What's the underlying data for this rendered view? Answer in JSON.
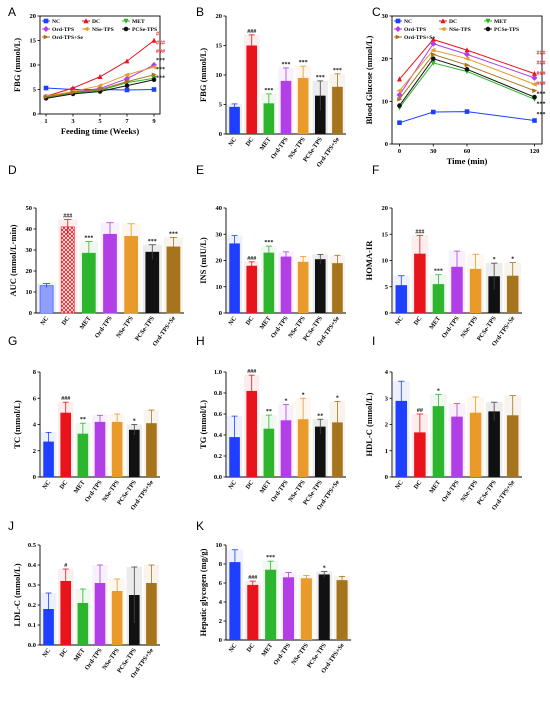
{
  "figure": {
    "groups": [
      "NC",
      "DC",
      "MET",
      "Ord-TPS",
      "NSe-TPS",
      "PCSe-TPS",
      "Ord-TPS+Se"
    ],
    "colors": {
      "NC": "#1f3fff",
      "DC": "#e8141c",
      "MET": "#2db52d",
      "Ord-TPS": "#b23ee8",
      "NSe-TPS": "#e89a2a",
      "PCSe-TPS": "#111111",
      "Ord-TPS+Se": "#a5741c"
    }
  },
  "chart_data": [
    {
      "panel": "A",
      "type": "line",
      "xlabel": "Feeding time (Weeks)",
      "ylabel": "FBG (mmol/L)",
      "x": [
        1,
        3,
        5,
        7,
        9
      ],
      "xticks": [
        "1",
        "3",
        "5",
        "7",
        "9"
      ],
      "yticks": [
        "0",
        "5",
        "10",
        "15",
        "20"
      ],
      "ylim": [
        0,
        20
      ],
      "legend": [
        "NC",
        "DC",
        "MET",
        "Ord-TPS",
        "NSe-TPS",
        "PCSe-TPS",
        "Ord-TPS+Se"
      ],
      "series": [
        {
          "name": "NC",
          "values": [
            5.3,
            5.0,
            5.0,
            4.9,
            5.0
          ]
        },
        {
          "name": "DC",
          "values": [
            3.6,
            5.3,
            7.6,
            10.8,
            15.0
          ]
        },
        {
          "name": "MET",
          "values": [
            3.4,
            4.3,
            4.8,
            6.4,
            7.3
          ]
        },
        {
          "name": "Ord-TPS",
          "values": [
            3.5,
            4.5,
            5.2,
            7.2,
            10.0
          ]
        },
        {
          "name": "NSe-TPS",
          "values": [
            3.6,
            4.6,
            5.8,
            8.0,
            9.6
          ]
        },
        {
          "name": "PCSe-TPS",
          "values": [
            3.2,
            4.1,
            4.6,
            5.8,
            7.0
          ]
        },
        {
          "name": "Ord-TPS+Se",
          "values": [
            3.5,
            4.4,
            5.0,
            6.6,
            8.0
          ]
        }
      ],
      "annotations": [
        "#",
        "###",
        "###",
        "***",
        "***",
        "***"
      ]
    },
    {
      "panel": "B",
      "type": "bar",
      "ylabel": "FBG (mmol/L)",
      "yticks": [
        "0",
        "5",
        "10",
        "15",
        "20"
      ],
      "ylim": [
        0,
        20
      ],
      "categories": [
        "NC",
        "DC",
        "MET",
        "Ord-TPS",
        "NSe-TPS",
        "PCSe-TPS",
        "Ord-TPS+Se"
      ],
      "values": [
        4.6,
        15.0,
        5.2,
        9.0,
        9.5,
        6.5,
        8.0
      ],
      "errors": [
        0.5,
        1.8,
        1.6,
        2.2,
        2.0,
        2.5,
        2.2
      ],
      "annotations": [
        "",
        "###",
        "***",
        "***",
        "***",
        "***",
        "***"
      ]
    },
    {
      "panel": "C",
      "type": "line",
      "xlabel": "Time (min)",
      "ylabel": "Blood Glucose (mmol/L)",
      "x": [
        0,
        30,
        60,
        120
      ],
      "xticks": [
        "0",
        "30",
        "60",
        "120"
      ],
      "yticks": [
        "0",
        "10",
        "20",
        "30"
      ],
      "ylim": [
        0,
        30
      ],
      "legend": [
        "NC",
        "DC",
        "MET",
        "Ord-TPS",
        "NSe-TPS",
        "PCSe-TPS",
        "Ord-TPS+Se"
      ],
      "series": [
        {
          "name": "NC",
          "values": [
            5.0,
            7.5,
            7.6,
            5.5
          ]
        },
        {
          "name": "DC",
          "values": [
            15.2,
            24.5,
            22.0,
            16.5
          ]
        },
        {
          "name": "MET",
          "values": [
            8.5,
            19.0,
            17.0,
            10.5
          ]
        },
        {
          "name": "Ord-TPS",
          "values": [
            11.5,
            23.5,
            21.0,
            15.5
          ]
        },
        {
          "name": "NSe-TPS",
          "values": [
            12.5,
            22.0,
            20.0,
            14.0
          ]
        },
        {
          "name": "PCSe-TPS",
          "values": [
            9.0,
            20.0,
            17.5,
            11.0
          ]
        },
        {
          "name": "Ord-TPS+Se",
          "values": [
            10.5,
            21.0,
            18.5,
            12.5
          ]
        }
      ],
      "annotations": [
        "###",
        "###",
        "###",
        "###",
        "***",
        "***",
        "***"
      ]
    },
    {
      "panel": "D",
      "type": "bar",
      "ylabel": "AUC (mmol/L·min)",
      "yticks": [
        "0",
        "10",
        "20",
        "30",
        "40",
        "50"
      ],
      "ylim": [
        0,
        50
      ],
      "categories": [
        "NC",
        "DC",
        "MET",
        "Ord-TPS",
        "NSe-TPS",
        "PCSe-TPS",
        "Ord-TPS+Se"
      ],
      "values": [
        13.0,
        41.0,
        28.5,
        37.5,
        36.5,
        29.0,
        31.5
      ],
      "errors": [
        1.0,
        3.5,
        5.5,
        5.5,
        6.0,
        3.5,
        4.5
      ],
      "annotations": [
        "",
        "###",
        "***",
        "",
        "",
        "***",
        "***"
      ]
    },
    {
      "panel": "E",
      "type": "bar",
      "ylabel": "INS (mIU/L)",
      "yticks": [
        "0",
        "10",
        "20",
        "30",
        "40"
      ],
      "ylim": [
        0,
        40
      ],
      "categories": [
        "NC",
        "DC",
        "MET",
        "Ord-TPS",
        "NSe-TPS",
        "PCSe-TPS",
        "Ord-TPS+Se"
      ],
      "values": [
        26.5,
        18.0,
        23.0,
        21.5,
        19.5,
        20.5,
        19.0
      ],
      "errors": [
        3.0,
        1.5,
        2.5,
        1.8,
        2.0,
        1.8,
        3.0
      ],
      "annotations": [
        "",
        "###",
        "***",
        "",
        "",
        "",
        ""
      ]
    },
    {
      "panel": "F",
      "type": "bar",
      "ylabel": "HOMA-IR",
      "yticks": [
        "0",
        "5",
        "10",
        "15",
        "20"
      ],
      "ylim": [
        0,
        20
      ],
      "categories": [
        "NC",
        "DC",
        "MET",
        "Ord-TPS",
        "NSe-TPS",
        "PCSe-TPS",
        "Ord-TPS+Se"
      ],
      "values": [
        5.3,
        11.3,
        5.5,
        8.8,
        8.4,
        7.0,
        7.1
      ],
      "errors": [
        1.8,
        3.5,
        1.8,
        3.0,
        2.8,
        2.5,
        2.5
      ],
      "annotations": [
        "",
        "###",
        "***",
        "",
        "",
        "*",
        "*"
      ]
    },
    {
      "panel": "G",
      "type": "bar",
      "ylabel": "TC (mmol/L)",
      "yticks": [
        "0",
        "2",
        "4",
        "6",
        "8"
      ],
      "ylim": [
        0,
        8
      ],
      "categories": [
        "NC",
        "DC",
        "MET",
        "Ord-TPS",
        "NSe-TPS",
        "PCSe-TPS",
        "Ord-TPS+Se"
      ],
      "values": [
        2.7,
        4.9,
        3.3,
        4.2,
        4.2,
        3.6,
        4.1
      ],
      "errors": [
        0.7,
        0.8,
        0.8,
        0.5,
        0.6,
        0.4,
        1.0
      ],
      "annotations": [
        "",
        "###",
        "**",
        "",
        "",
        "*",
        ""
      ]
    },
    {
      "panel": "H",
      "type": "bar",
      "ylabel": "TG (mmol/L)",
      "yticks": [
        "0.0",
        "0.2",
        "0.4",
        "0.6",
        "0.8",
        "1.0"
      ],
      "ylim": [
        0,
        1.0
      ],
      "categories": [
        "NC",
        "DC",
        "MET",
        "Ord-TPS",
        "NSe-TPS",
        "PCSe-TPS",
        "Ord-TPS+Se"
      ],
      "values": [
        0.38,
        0.82,
        0.46,
        0.54,
        0.55,
        0.48,
        0.52
      ],
      "errors": [
        0.2,
        0.15,
        0.13,
        0.15,
        0.2,
        0.07,
        0.2
      ],
      "annotations": [
        "",
        "###",
        "**",
        "*",
        "*",
        "**",
        "*"
      ]
    },
    {
      "panel": "I",
      "type": "bar",
      "ylabel": "HDL-C (mmol/L)",
      "yticks": [
        "0",
        "1",
        "2",
        "3",
        "4"
      ],
      "ylim": [
        0,
        4
      ],
      "categories": [
        "NC",
        "DC",
        "MET",
        "Ord-TPS",
        "NSe-TPS",
        "PCSe-TPS",
        "Ord-TPS+Se"
      ],
      "values": [
        2.9,
        1.7,
        2.7,
        2.3,
        2.45,
        2.5,
        2.35
      ],
      "errors": [
        0.75,
        0.7,
        0.45,
        0.5,
        0.6,
        0.35,
        0.75
      ],
      "annotations": [
        "",
        "##",
        "*",
        "",
        "",
        "",
        ""
      ]
    },
    {
      "panel": "J",
      "type": "bar",
      "ylabel": "LDL-C (mmol/L)",
      "yticks": [
        "0.0",
        "0.1",
        "0.2",
        "0.3",
        "0.4",
        "0.5"
      ],
      "ylim": [
        0,
        0.5
      ],
      "categories": [
        "NC",
        "DC",
        "MET",
        "Ord-TPS",
        "NSe-TPS",
        "PCSe-TPS",
        "Ord-TPS+Se"
      ],
      "values": [
        0.18,
        0.32,
        0.21,
        0.31,
        0.27,
        0.25,
        0.31
      ],
      "errors": [
        0.08,
        0.06,
        0.07,
        0.09,
        0.06,
        0.14,
        0.09
      ],
      "annotations": [
        "",
        "#",
        "",
        "",
        "",
        "",
        ""
      ]
    },
    {
      "panel": "K",
      "type": "bar",
      "ylabel": "Hepatic glycogen (mg/g)",
      "yticks": [
        "0",
        "2",
        "4",
        "6",
        "8",
        "10"
      ],
      "ylim": [
        0,
        10
      ],
      "categories": [
        "NC",
        "DC",
        "MET",
        "Ord-TPS",
        "NSe-TPS",
        "PCSe-TPS",
        "Ord-TPS+Se"
      ],
      "values": [
        8.2,
        5.8,
        7.4,
        6.6,
        6.5,
        6.9,
        6.3
      ],
      "errors": [
        1.3,
        0.4,
        0.9,
        0.5,
        0.3,
        0.3,
        0.4
      ],
      "annotations": [
        "",
        "###",
        "***",
        "",
        "",
        "*",
        ""
      ]
    }
  ]
}
